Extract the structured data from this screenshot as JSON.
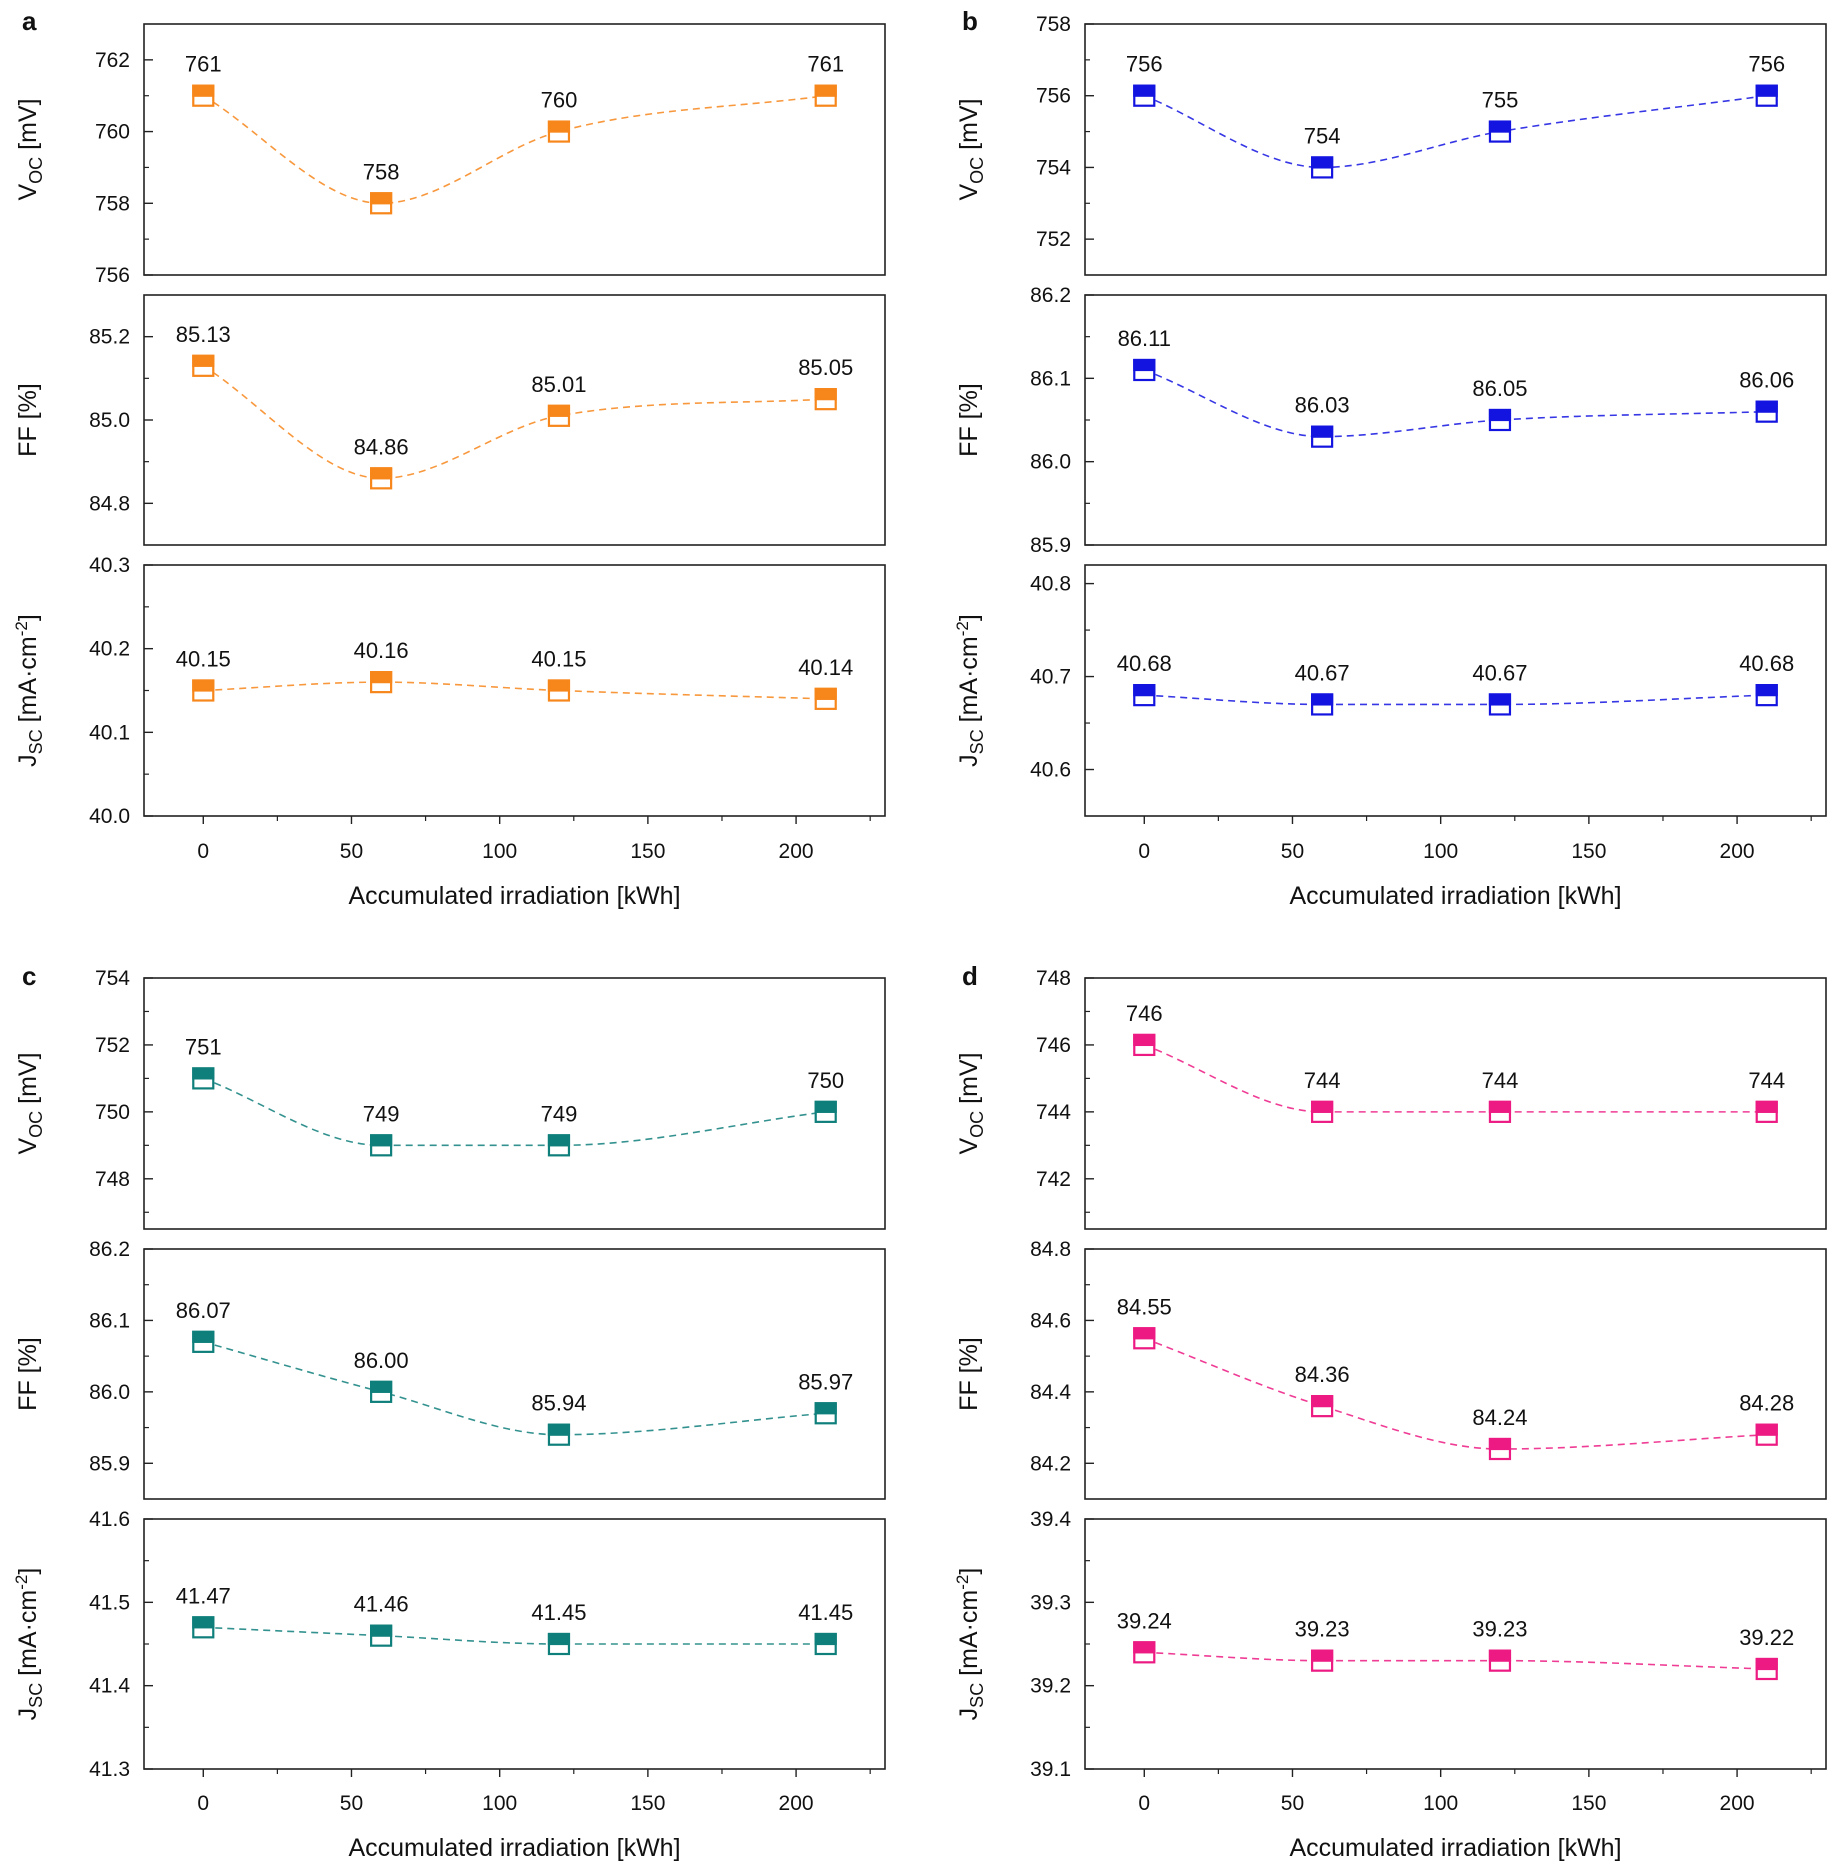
{
  "figure": {
    "x_axis_title": "Accumulated irradiation [kWh]",
    "x_ticks": [
      0,
      50,
      100,
      150,
      200
    ],
    "x_range": [
      -20,
      230
    ],
    "x_positions": [
      0,
      60,
      120,
      210
    ]
  },
  "chart_data": [
    {
      "panel": "a",
      "color": "#f7861b",
      "type": "scatter",
      "xlabel": "Accumulated irradiation [kWh]",
      "subplots": [
        {
          "ylabel_main": "V",
          "ylabel_sub": "OC",
          "ylabel_unit": " [mV]",
          "ylim": [
            756,
            763
          ],
          "yticks": [
            756,
            758,
            760,
            762
          ],
          "values": [
            761,
            758,
            760,
            761
          ],
          "labels": [
            "761",
            "758",
            "760",
            "761"
          ],
          "show_top_tick": false
        },
        {
          "ylabel_main": "FF",
          "ylabel_sub": "",
          "ylabel_unit": " [%]",
          "ylim": [
            84.7,
            85.3
          ],
          "yticks": [
            84.8,
            85.0,
            85.2
          ],
          "values": [
            85.13,
            84.86,
            85.01,
            85.05
          ],
          "labels": [
            "85.13",
            "84.86",
            "85.01",
            "85.05"
          ],
          "show_top_tick": false
        },
        {
          "ylabel_main": "J",
          "ylabel_sub": "SC",
          "ylabel_unit": " [mA·cm",
          "ylabel_sup": "-2",
          "ylabel_end": "]",
          "ylim": [
            40.0,
            40.3
          ],
          "yticks": [
            40.0,
            40.1,
            40.2,
            40.3
          ],
          "values": [
            40.15,
            40.16,
            40.15,
            40.14
          ],
          "labels": [
            "40.15",
            "40.16",
            "40.15",
            "40.14"
          ],
          "show_top_tick": true
        }
      ]
    },
    {
      "panel": "b",
      "color": "#1414e0",
      "type": "scatter",
      "xlabel": "Accumulated irradiation [kWh]",
      "subplots": [
        {
          "ylabel_main": "V",
          "ylabel_sub": "OC",
          "ylabel_unit": " [mV]",
          "ylim": [
            751,
            758
          ],
          "yticks": [
            752,
            754,
            756,
            758
          ],
          "values": [
            756,
            754,
            755,
            756
          ],
          "labels": [
            "756",
            "754",
            "755",
            "756"
          ],
          "show_top_tick": true
        },
        {
          "ylabel_main": "FF",
          "ylabel_sub": "",
          "ylabel_unit": " [%]",
          "ylim": [
            85.9,
            86.2
          ],
          "yticks": [
            85.9,
            86.0,
            86.1,
            86.2
          ],
          "values": [
            86.11,
            86.03,
            86.05,
            86.06
          ],
          "labels": [
            "86.11",
            "86.03",
            "86.05",
            "86.06"
          ],
          "show_top_tick": true
        },
        {
          "ylabel_main": "J",
          "ylabel_sub": "SC",
          "ylabel_unit": " [mA·cm",
          "ylabel_sup": "-2",
          "ylabel_end": "]",
          "ylim": [
            40.55,
            40.82
          ],
          "yticks": [
            40.6,
            40.7,
            40.8
          ],
          "values": [
            40.68,
            40.67,
            40.67,
            40.68
          ],
          "labels": [
            "40.68",
            "40.67",
            "40.67",
            "40.68"
          ],
          "show_top_tick": false
        }
      ]
    },
    {
      "panel": "c",
      "color": "#0f7f7b",
      "type": "scatter",
      "xlabel": "Accumulated irradiation [kWh]",
      "subplots": [
        {
          "ylabel_main": "V",
          "ylabel_sub": "OC",
          "ylabel_unit": " [mV]",
          "ylim": [
            746.5,
            754
          ],
          "yticks": [
            748,
            750,
            752,
            754
          ],
          "values": [
            751,
            749,
            749,
            750
          ],
          "labels": [
            "751",
            "749",
            "749",
            "750"
          ],
          "show_top_tick": true
        },
        {
          "ylabel_main": "FF",
          "ylabel_sub": "",
          "ylabel_unit": " [%]",
          "ylim": [
            85.85,
            86.2
          ],
          "yticks": [
            85.9,
            86.0,
            86.1,
            86.2
          ],
          "values": [
            86.07,
            86.0,
            85.94,
            85.97
          ],
          "labels": [
            "86.07",
            "86.00",
            "85.94",
            "85.97"
          ],
          "show_top_tick": true
        },
        {
          "ylabel_main": "J",
          "ylabel_sub": "SC",
          "ylabel_unit": " [mA·cm",
          "ylabel_sup": "-2",
          "ylabel_end": "]",
          "ylim": [
            41.3,
            41.6
          ],
          "yticks": [
            41.3,
            41.4,
            41.5,
            41.6
          ],
          "values": [
            41.47,
            41.46,
            41.45,
            41.45
          ],
          "labels": [
            "41.47",
            "41.46",
            "41.45",
            "41.45"
          ],
          "show_top_tick": true
        }
      ]
    },
    {
      "panel": "d",
      "color": "#ec1a82",
      "type": "scatter",
      "xlabel": "Accumulated irradiation [kWh]",
      "subplots": [
        {
          "ylabel_main": "V",
          "ylabel_sub": "OC",
          "ylabel_unit": " [mV]",
          "ylim": [
            740.5,
            748
          ],
          "yticks": [
            742,
            744,
            746,
            748
          ],
          "values": [
            746,
            744,
            744,
            744
          ],
          "labels": [
            "746",
            "744",
            "744",
            "744"
          ],
          "show_top_tick": true
        },
        {
          "ylabel_main": "FF",
          "ylabel_sub": "",
          "ylabel_unit": " [%]",
          "ylim": [
            84.1,
            84.8
          ],
          "yticks": [
            84.2,
            84.4,
            84.6,
            84.8
          ],
          "values": [
            84.55,
            84.36,
            84.24,
            84.28
          ],
          "labels": [
            "84.55",
            "84.36",
            "84.24",
            "84.28"
          ],
          "show_top_tick": true
        },
        {
          "ylabel_main": "J",
          "ylabel_sub": "SC",
          "ylabel_unit": " [mA·cm",
          "ylabel_sup": "-2",
          "ylabel_end": "]",
          "ylim": [
            39.1,
            39.4
          ],
          "yticks": [
            39.1,
            39.2,
            39.3,
            39.4
          ],
          "values": [
            39.24,
            39.23,
            39.23,
            39.22
          ],
          "labels": [
            "39.24",
            "39.23",
            "39.23",
            "39.22"
          ],
          "show_top_tick": true
        }
      ]
    }
  ]
}
